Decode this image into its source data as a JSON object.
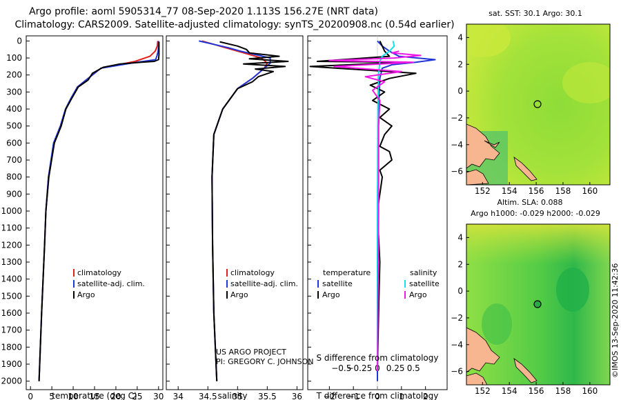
{
  "header": {
    "title_line1": "Argo profile: aoml 5905314_77 08-Sep-2020 1.113S 156.27E (NRT data)",
    "title_line2": "Climatology: CARS2009. Satellite-adjusted climatology: synTS_20200908.nc (0.54d earlier)"
  },
  "colors": {
    "climatology": "#e0201a",
    "satellite": "#1f35d8",
    "argo": "#000000",
    "sat_salinity": "#12e0ee",
    "argo_salinity": "#ee18e6",
    "land": "#f7b68f"
  },
  "depth_axis": {
    "ticks": [
      0,
      100,
      200,
      300,
      400,
      500,
      600,
      700,
      800,
      900,
      1000,
      1100,
      1200,
      1300,
      1400,
      1500,
      1600,
      1700,
      1800,
      1900,
      2000
    ]
  },
  "annotation": {
    "line1": "US ARGO PROJECT",
    "line2": "PI: GREGORY C. JOHNSON"
  },
  "timestamp": "©IMOS 13-Sep-2020 11:42:36",
  "chart_data": [
    {
      "type": "line",
      "id": "temperature",
      "xlabel": "temperature (deg C)",
      "xlim": [
        -1,
        31
      ],
      "ylim": [
        2050,
        -30
      ],
      "xticks": [
        0,
        5,
        10,
        15,
        20,
        25,
        30
      ],
      "legend": [
        "climatology",
        "satellite-adj. clim.",
        "Argo"
      ],
      "series": [
        {
          "name": "climatology",
          "color": "#e0201a",
          "x": [
            29.8,
            29.7,
            29.2,
            28.0,
            24.5,
            16.5,
            13.5,
            11.0,
            9.5,
            8.3,
            7.0,
            5.5,
            4.2,
            3.6,
            3.3,
            2.6,
            2.0
          ],
          "y": [
            0,
            30,
            60,
            90,
            120,
            160,
            220,
            270,
            340,
            400,
            500,
            600,
            800,
            1000,
            1200,
            1600,
            2000
          ]
        },
        {
          "name": "satellite-adj. clim.",
          "color": "#1f35d8",
          "x": [
            30.0,
            30.0,
            29.9,
            29.6,
            29.3,
            25.0,
            16.5,
            13.5,
            11.0,
            9.4,
            8.2,
            7.0,
            5.4,
            4.2,
            3.6,
            3.3,
            2.6,
            2.0
          ],
          "y": [
            0,
            30,
            60,
            90,
            110,
            125,
            160,
            220,
            270,
            340,
            400,
            500,
            600,
            800,
            1000,
            1200,
            1600,
            2000
          ]
        },
        {
          "name": "Argo",
          "color": "#000000",
          "x": [
            30.1,
            30.1,
            30.1,
            30.0,
            29.0,
            26.0,
            21.0,
            17.0,
            14.5,
            13.5,
            11.2,
            9.6,
            8.3,
            7.2,
            5.6,
            4.3,
            3.6,
            3.3,
            2.6,
            2.0
          ],
          "y": [
            5,
            40,
            80,
            110,
            120,
            125,
            135,
            155,
            190,
            230,
            270,
            340,
            400,
            500,
            600,
            800,
            1000,
            1200,
            1600,
            2000
          ]
        }
      ]
    },
    {
      "type": "line",
      "id": "salinity",
      "xlabel": "salinity",
      "xlim": [
        33.8,
        36.1
      ],
      "ylim": [
        2050,
        -30
      ],
      "xticks": [
        34,
        34.5,
        35,
        35.5,
        36
      ],
      "legend": [
        "climatology",
        "satellite-adj. clim.",
        "Argo"
      ],
      "series": [
        {
          "name": "climatology",
          "color": "#e0201a",
          "x": [
            34.4,
            34.6,
            34.8,
            35.0,
            35.2,
            35.4,
            35.5,
            35.45,
            35.25,
            35.0,
            34.75,
            34.6,
            34.57,
            34.58,
            34.6,
            34.65
          ],
          "y": [
            0,
            20,
            40,
            60,
            80,
            100,
            130,
            160,
            220,
            280,
            400,
            550,
            800,
            1200,
            1600,
            2000
          ]
        },
        {
          "name": "satellite-adj. clim.",
          "color": "#1f35d8",
          "x": [
            34.35,
            34.6,
            34.85,
            35.05,
            35.3,
            35.55,
            35.55,
            35.45,
            35.25,
            35.0,
            34.75,
            34.6,
            34.57,
            34.58,
            34.6,
            34.65
          ],
          "y": [
            0,
            20,
            40,
            60,
            80,
            100,
            130,
            160,
            220,
            280,
            400,
            550,
            800,
            1200,
            1600,
            2000
          ]
        },
        {
          "name": "Argo",
          "color": "#000000",
          "x": [
            34.7,
            35.0,
            35.15,
            35.2,
            35.7,
            35.2,
            35.85,
            35.1,
            35.8,
            35.3,
            35.6,
            35.35,
            35.25,
            35.0,
            34.75,
            34.6,
            34.57,
            34.58,
            34.6,
            34.65
          ],
          "y": [
            5,
            30,
            50,
            70,
            90,
            105,
            120,
            135,
            150,
            165,
            180,
            210,
            240,
            280,
            400,
            550,
            800,
            1200,
            1600,
            2000
          ]
        }
      ]
    },
    {
      "type": "line",
      "id": "difference",
      "xlabel": "T difference from climatology",
      "xlabel2": "S difference from climatology",
      "xlim": [
        -2.9,
        2.9
      ],
      "ylim": [
        2050,
        -30
      ],
      "xticks": [
        -2,
        -1,
        0,
        1,
        2
      ],
      "xticks2": [
        -0.5,
        -0.25,
        0,
        0.25,
        0.5
      ],
      "legend": [
        "temperature",
        "satellite",
        "Argo",
        "salinity",
        "satellite",
        "Argo"
      ],
      "series": [
        {
          "name": "T satellite",
          "color": "#1f35d8",
          "x": [
            0.0,
            0.2,
            0.5,
            0.9,
            2.4,
            1.6,
            0.6,
            0.2,
            0.1,
            0.05,
            0.0,
            0.0
          ],
          "y": [
            0,
            30,
            60,
            90,
            110,
            125,
            140,
            160,
            220,
            400,
            1000,
            2000
          ]
        },
        {
          "name": "T Argo",
          "color": "#000000",
          "x": [
            0.1,
            0.2,
            0.3,
            0.5,
            -2.5,
            1.2,
            -2.8,
            1.6,
            0.5,
            -0.3,
            0.3,
            -0.2,
            0.5,
            0.1,
            0.6,
            0.3,
            0.1,
            0.5,
            0.6,
            0.1,
            0.2,
            0.1,
            0.0,
            0.1,
            0.05,
            0.0
          ],
          "y": [
            0,
            30,
            60,
            90,
            120,
            125,
            150,
            190,
            220,
            260,
            300,
            350,
            400,
            450,
            500,
            550,
            620,
            650,
            700,
            760,
            800,
            900,
            1000,
            1300,
            1600,
            1940
          ]
        },
        {
          "name": "S satellite",
          "color": "#12e0ee",
          "x": [
            0.65,
            0.7,
            0.5,
            0.2,
            0.1,
            0.05,
            0.02,
            0.0,
            0.0
          ],
          "y": [
            0,
            30,
            60,
            90,
            120,
            200,
            400,
            1000,
            1940
          ]
        },
        {
          "name": "S Argo",
          "color": "#ee18e6",
          "x": [
            0.9,
            0.6,
            1.8,
            0.7,
            -2.0,
            1.5,
            -1.8,
            1.0,
            -0.5,
            0.3,
            -0.2,
            0.1,
            0.05,
            0.05,
            0.0
          ],
          "y": [
            60,
            70,
            85,
            100,
            115,
            125,
            150,
            180,
            210,
            240,
            290,
            350,
            500,
            1000,
            1940
          ]
        }
      ]
    },
    {
      "type": "heatmap",
      "id": "sst_map",
      "title": "sat. SST: 30.1 Argo: 30.1",
      "xticks": [
        152,
        154,
        156,
        158,
        160
      ],
      "yticks": [
        4,
        2,
        0,
        -2,
        -4,
        -6
      ],
      "xlim": [
        150.8,
        161.5
      ],
      "ylim": [
        -7,
        5
      ],
      "float_position": [
        156.27,
        -1.113
      ]
    },
    {
      "type": "heatmap",
      "id": "sla_map",
      "title": "Altim. SLA: 0.088",
      "subtitle": "Argo h1000: -0.029 h2000: -0.029",
      "xticks": [
        152,
        154,
        156,
        158,
        160
      ],
      "yticks": [
        4,
        2,
        0,
        -2,
        -4,
        -6
      ],
      "xlim": [
        150.8,
        161.5
      ],
      "ylim": [
        -7,
        5
      ],
      "float_position": [
        156.27,
        -1.113
      ]
    }
  ]
}
